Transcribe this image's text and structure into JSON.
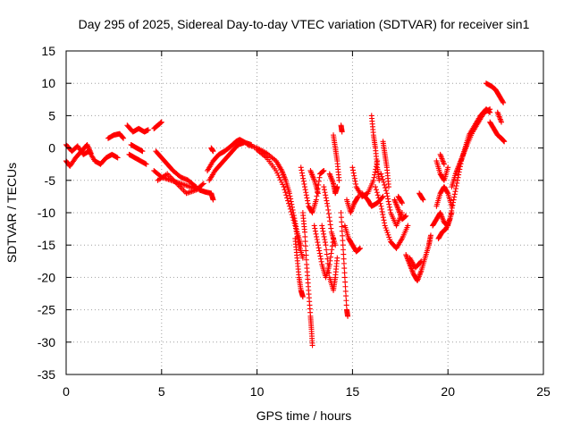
{
  "chart_data": {
    "type": "scatter",
    "title": "Day 295 of 2025, Sidereal Day-to-day VTEC variation (SDTVAR) for receiver sin1",
    "xlabel": "GPS time / hours",
    "ylabel": "SDTVAR / TECUs",
    "xlim": [
      0,
      25
    ],
    "ylim": [
      -35,
      15
    ],
    "xticks": [
      "0",
      "5",
      "10",
      "15",
      "20",
      "25"
    ],
    "yticks": [
      "15",
      "10",
      "5",
      "0",
      "-5",
      "-10",
      "-15",
      "-20",
      "-25",
      "-30",
      "-35"
    ],
    "grid": true,
    "marker": "+",
    "color": "#ff0000",
    "series": [
      {
        "name": "SDTVAR",
        "segments": [
          [
            [
              0.0,
              0.5
            ],
            [
              0.3,
              -0.5
            ],
            [
              0.6,
              0.3
            ],
            [
              0.9,
              -1.0
            ],
            [
              1.2,
              -0.5
            ],
            [
              1.5,
              -2.0
            ],
            [
              1.8,
              -2.5
            ],
            [
              2.1,
              -1.5
            ],
            [
              2.4,
              -1.0
            ],
            [
              2.7,
              -1.5
            ]
          ],
          [
            [
              0.0,
              -2.0
            ],
            [
              0.2,
              -2.8
            ],
            [
              0.5,
              -1.5
            ],
            [
              0.8,
              -0.5
            ],
            [
              1.1,
              0.5
            ],
            [
              1.3,
              -0.8
            ]
          ],
          [
            [
              2.2,
              1.5
            ],
            [
              2.5,
              2.0
            ],
            [
              2.8,
              2.2
            ],
            [
              3.0,
              1.5
            ]
          ],
          [
            [
              3.2,
              3.5
            ],
            [
              3.5,
              2.5
            ],
            [
              3.8,
              3.0
            ],
            [
              4.1,
              2.5
            ],
            [
              4.3,
              2.8
            ]
          ],
          [
            [
              3.3,
              -1.0
            ],
            [
              3.6,
              -1.5
            ],
            [
              3.9,
              -2.0
            ],
            [
              4.2,
              -2.5
            ]
          ],
          [
            [
              3.4,
              0.5
            ],
            [
              3.7,
              0.0
            ],
            [
              4.0,
              -0.5
            ]
          ],
          [
            [
              4.6,
              3.0
            ],
            [
              4.8,
              3.5
            ],
            [
              5.0,
              4.0
            ]
          ],
          [
            [
              4.6,
              -3.5
            ],
            [
              5.0,
              -4.5
            ],
            [
              5.5,
              -5.0
            ],
            [
              6.0,
              -5.5
            ],
            [
              6.5,
              -6.0
            ],
            [
              7.0,
              -6.5
            ],
            [
              7.3,
              -6.8
            ],
            [
              7.6,
              -7.0
            ],
            [
              7.7,
              -8.0
            ]
          ],
          [
            [
              4.7,
              -0.5
            ],
            [
              5.0,
              -1.5
            ],
            [
              5.3,
              -2.5
            ],
            [
              5.6,
              -3.5
            ],
            [
              6.0,
              -4.5
            ],
            [
              6.4,
              -5.0
            ],
            [
              6.8,
              -6.0
            ]
          ],
          [
            [
              4.8,
              -5.0
            ],
            [
              5.3,
              -4.0
            ],
            [
              5.8,
              -5.5
            ],
            [
              6.3,
              -7.0
            ],
            [
              6.8,
              -6.5
            ],
            [
              7.2,
              -5.5
            ]
          ],
          [
            [
              7.4,
              -3.5
            ],
            [
              7.7,
              -2.0
            ],
            [
              8.0,
              -1.0
            ],
            [
              8.3,
              -0.5
            ],
            [
              8.6,
              0.2
            ],
            [
              8.9,
              1.0
            ],
            [
              9.1,
              1.3
            ],
            [
              9.4,
              0.8
            ],
            [
              9.7,
              0.5
            ]
          ],
          [
            [
              7.5,
              -5.0
            ],
            [
              7.8,
              -3.5
            ],
            [
              8.1,
              -2.5
            ],
            [
              8.4,
              -1.5
            ],
            [
              8.7,
              -0.5
            ],
            [
              9.0,
              0.5
            ],
            [
              9.3,
              0.8
            ]
          ],
          [
            [
              7.6,
              0.0
            ],
            [
              7.7,
              -0.5
            ]
          ],
          [
            [
              9.5,
              0.5
            ],
            [
              10.0,
              0.0
            ],
            [
              10.5,
              -0.8
            ],
            [
              11.0,
              -2.0
            ],
            [
              11.3,
              -3.5
            ],
            [
              11.5,
              -5.0
            ],
            [
              11.7,
              -7.0
            ],
            [
              11.9,
              -10.0
            ],
            [
              12.1,
              -13.0
            ],
            [
              12.3,
              -15.0
            ]
          ],
          [
            [
              10.0,
              -0.3
            ],
            [
              10.5,
              -1.5
            ],
            [
              11.0,
              -3.5
            ],
            [
              11.4,
              -6.0
            ],
            [
              11.7,
              -9.0
            ],
            [
              12.0,
              -12.0
            ],
            [
              12.2,
              -15.0
            ],
            [
              12.4,
              -17.0
            ]
          ],
          [
            [
              12.0,
              -14.0
            ],
            [
              12.1,
              -17.0
            ],
            [
              12.2,
              -20.0
            ],
            [
              12.3,
              -22.0
            ],
            [
              12.4,
              -23.0
            ]
          ],
          [
            [
              12.4,
              -10.0
            ],
            [
              12.5,
              -13.0
            ],
            [
              12.6,
              -18.0
            ],
            [
              12.7,
              -22.0
            ],
            [
              12.8,
              -26.0
            ],
            [
              12.85,
              -28.0
            ],
            [
              12.9,
              -30.5
            ]
          ],
          [
            [
              12.3,
              -3.0
            ],
            [
              12.5,
              -6.0
            ],
            [
              12.7,
              -9.0
            ],
            [
              12.9,
              -10.0
            ],
            [
              13.1,
              -8.0
            ],
            [
              13.3,
              -4.0
            ],
            [
              13.5,
              -3.5
            ]
          ],
          [
            [
              12.8,
              -3.5
            ],
            [
              13.0,
              -5.0
            ],
            [
              13.2,
              -7.0
            ]
          ],
          [
            [
              13.0,
              -12.0
            ],
            [
              13.2,
              -15.0
            ],
            [
              13.4,
              -18.0
            ],
            [
              13.6,
              -20.0
            ],
            [
              13.8,
              -18.0
            ],
            [
              14.0,
              -14.0
            ]
          ],
          [
            [
              13.4,
              -12.0
            ],
            [
              13.6,
              -15.0
            ],
            [
              13.8,
              -20.0
            ],
            [
              14.0,
              -22.0
            ],
            [
              14.1,
              -20.0
            ],
            [
              14.2,
              -17.0
            ]
          ],
          [
            [
              13.5,
              -6.0
            ],
            [
              13.7,
              -9.0
            ],
            [
              13.9,
              -13.0
            ],
            [
              14.1,
              -15.0
            ]
          ],
          [
            [
              13.8,
              -4.0
            ],
            [
              14.0,
              -5.5
            ],
            [
              14.1,
              -7.0
            ],
            [
              14.2,
              -6.0
            ]
          ],
          [
            [
              14.0,
              2.0
            ],
            [
              14.1,
              0.0
            ],
            [
              14.2,
              -2.0
            ],
            [
              14.3,
              -5.0
            ]
          ],
          [
            [
              14.4,
              3.5
            ],
            [
              14.45,
              2.5
            ]
          ],
          [
            [
              14.4,
              -10.0
            ],
            [
              14.5,
              -15.0
            ],
            [
              14.6,
              -20.0
            ],
            [
              14.7,
              -25.0
            ],
            [
              14.75,
              -26.0
            ]
          ],
          [
            [
              14.6,
              -12.0
            ],
            [
              14.8,
              -14.0
            ],
            [
              15.0,
              -15.0
            ],
            [
              15.2,
              -16.0
            ],
            [
              15.4,
              -15.5
            ]
          ],
          [
            [
              14.7,
              -8.0
            ],
            [
              14.9,
              -10.0
            ],
            [
              15.1,
              -8.5
            ],
            [
              15.3,
              -7.5
            ]
          ],
          [
            [
              15.5,
              -7.0
            ],
            [
              15.8,
              -8.0
            ],
            [
              16.0,
              -9.0
            ],
            [
              16.3,
              -8.5
            ],
            [
              16.6,
              -7.5
            ]
          ],
          [
            [
              15.0,
              -3.0
            ],
            [
              15.2,
              -6.0
            ],
            [
              15.5,
              -7.5
            ],
            [
              15.8,
              -7.0
            ],
            [
              16.1,
              -5.0
            ],
            [
              16.3,
              -2.0
            ]
          ],
          [
            [
              16.0,
              5.0
            ],
            [
              16.1,
              2.0
            ],
            [
              16.2,
              0.0
            ],
            [
              16.3,
              -3.0
            ],
            [
              16.4,
              -5.0
            ]
          ],
          [
            [
              16.2,
              -6.0
            ],
            [
              16.5,
              -9.0
            ],
            [
              16.7,
              -12.0
            ],
            [
              17.0,
              -14.5
            ],
            [
              17.3,
              -15.5
            ],
            [
              17.6,
              -14.0
            ],
            [
              17.9,
              -12.0
            ]
          ],
          [
            [
              16.5,
              -4.0
            ],
            [
              16.8,
              -7.0
            ],
            [
              17.0,
              -10.0
            ],
            [
              17.3,
              -12.0
            ],
            [
              17.6,
              -10.0
            ]
          ],
          [
            [
              16.6,
              1.0
            ],
            [
              16.7,
              -1.0
            ],
            [
              16.8,
              -3.0
            ],
            [
              16.9,
              -6.0
            ]
          ],
          [
            [
              17.2,
              -8.0
            ],
            [
              17.4,
              -9.5
            ],
            [
              17.6,
              -11.0
            ],
            [
              17.8,
              -10.5
            ]
          ],
          [
            [
              17.4,
              -7.5
            ],
            [
              17.6,
              -8.5
            ]
          ],
          [
            [
              17.8,
              -16.5
            ],
            [
              18.0,
              -18.0
            ],
            [
              18.2,
              -19.5
            ],
            [
              18.4,
              -20.5
            ],
            [
              18.6,
              -19.0
            ],
            [
              18.8,
              -17.0
            ],
            [
              19.0,
              -15.0
            ],
            [
              19.1,
              -13.5
            ]
          ],
          [
            [
              18.0,
              -17.0
            ],
            [
              18.3,
              -18.5
            ],
            [
              18.6,
              -17.5
            ]
          ],
          [
            [
              18.5,
              -7.0
            ],
            [
              18.7,
              -8.0
            ]
          ],
          [
            [
              19.2,
              -12.0
            ],
            [
              19.4,
              -11.0
            ],
            [
              19.6,
              -10.0
            ],
            [
              19.8,
              -11.5
            ],
            [
              20.0,
              -12.0
            ],
            [
              20.2,
              -10.0
            ]
          ],
          [
            [
              19.5,
              -14.0
            ],
            [
              19.7,
              -13.0
            ],
            [
              19.9,
              -12.5
            ],
            [
              20.1,
              -11.0
            ],
            [
              20.3,
              -8.0
            ],
            [
              20.5,
              -5.0
            ],
            [
              20.7,
              -2.0
            ],
            [
              20.9,
              0.0
            ],
            [
              21.1,
              2.0
            ],
            [
              21.4,
              3.5
            ],
            [
              21.7,
              5.0
            ],
            [
              22.0,
              6.0
            ],
            [
              22.2,
              5.5
            ]
          ],
          [
            [
              19.4,
              -9.0
            ],
            [
              19.6,
              -7.0
            ],
            [
              19.8,
              -6.0
            ],
            [
              20.0,
              -7.0
            ],
            [
              20.2,
              -9.0
            ]
          ],
          [
            [
              19.4,
              -2.0
            ],
            [
              19.6,
              -4.0
            ],
            [
              19.8,
              -5.0
            ],
            [
              20.0,
              -3.0
            ]
          ],
          [
            [
              19.6,
              -1.0
            ],
            [
              19.8,
              -2.5
            ]
          ],
          [
            [
              20.2,
              -6.0
            ],
            [
              20.4,
              -4.0
            ],
            [
              20.6,
              -2.5
            ],
            [
              20.8,
              -1.0
            ],
            [
              21.0,
              0.5
            ],
            [
              21.3,
              2.5
            ],
            [
              21.6,
              4.0
            ],
            [
              21.9,
              5.5
            ],
            [
              22.2,
              6.0
            ]
          ],
          [
            [
              22.0,
              10.0
            ],
            [
              22.3,
              9.5
            ],
            [
              22.5,
              9.0
            ],
            [
              22.7,
              8.0
            ],
            [
              22.9,
              7.0
            ]
          ],
          [
            [
              22.2,
              4.0
            ],
            [
              22.4,
              3.0
            ],
            [
              22.6,
              2.0
            ],
            [
              22.8,
              1.5
            ],
            [
              22.95,
              1.0
            ]
          ],
          [
            [
              22.6,
              5.5
            ],
            [
              22.8,
              4.0
            ]
          ]
        ]
      }
    ]
  }
}
